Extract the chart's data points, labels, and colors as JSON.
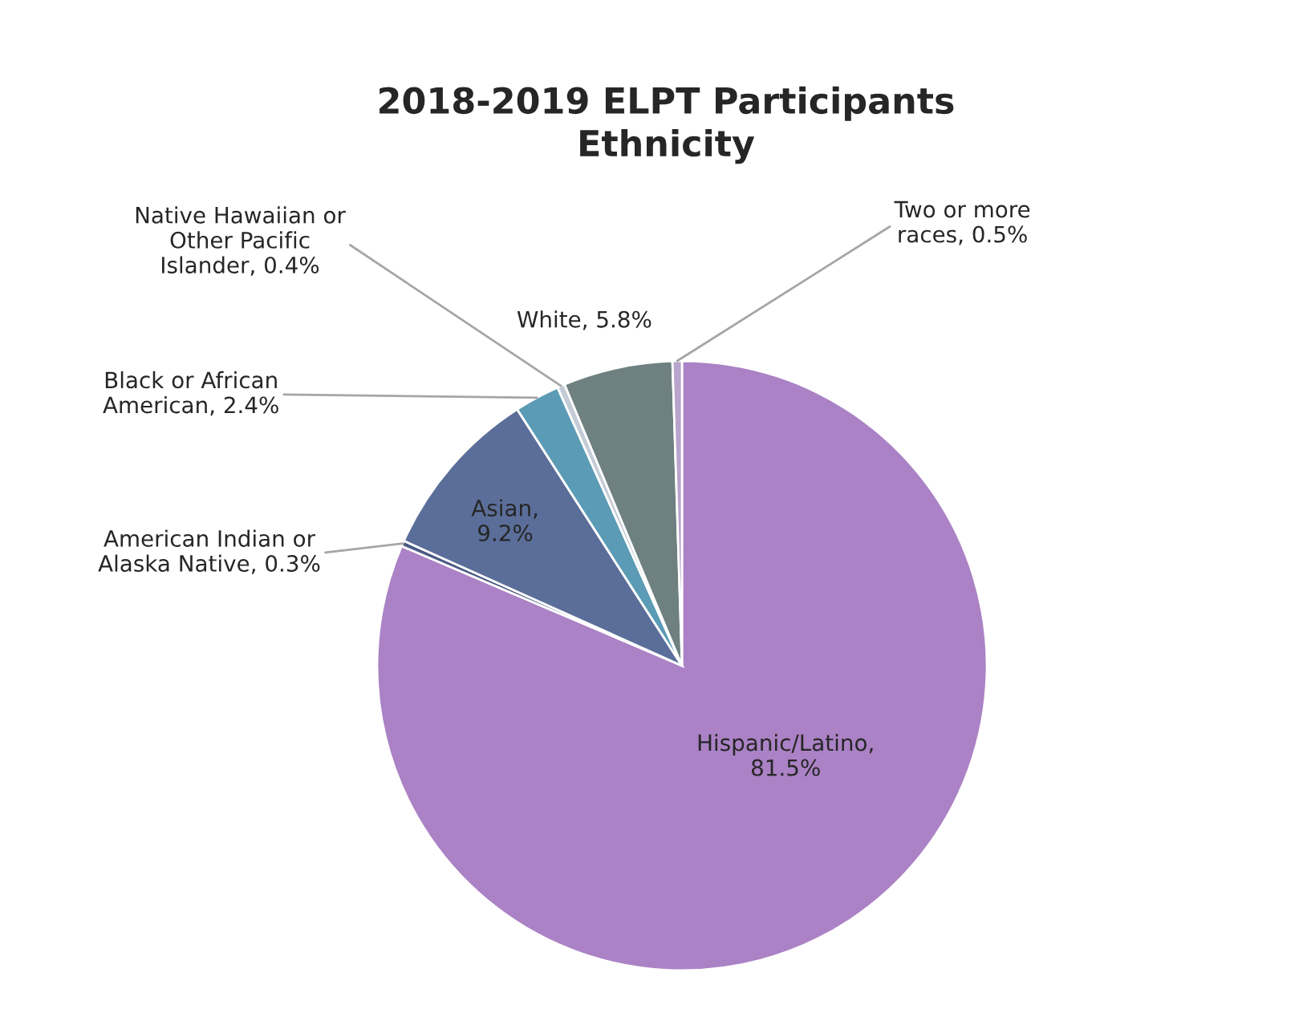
{
  "chart_data": {
    "type": "pie",
    "title": "2018-2019 ELPT Participants\nEthnicity",
    "categories": [
      "Hispanic/Latino",
      "American Indian or Alaska Native",
      "Asian",
      "Black or African American",
      "Native Hawaiian or Other Pacific Islander",
      "White",
      "Two or more races"
    ],
    "values": [
      81.5,
      0.3,
      9.2,
      2.4,
      0.4,
      5.8,
      0.5
    ],
    "colors": [
      "#ab82c5",
      "#4a5a84",
      "#5b6e9a",
      "#5b9bb5",
      "#c3ccd6",
      "#6e8080",
      "#b8a4cc"
    ],
    "value_labels": [
      ", 81.5%",
      ", 0.3%",
      ", 9.2%",
      ", 2.4%",
      ", 0.4%",
      ", 5.8%",
      ", 0.5%"
    ],
    "legend": false
  }
}
